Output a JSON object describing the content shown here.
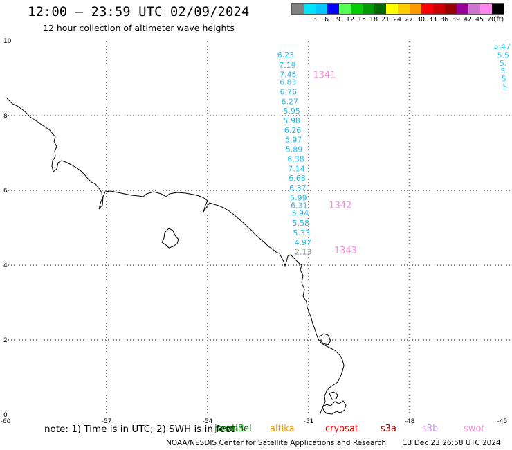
{
  "header": {
    "title": "12:00 – 23:59 UTC 02/09/2024",
    "subtitle": "12 hour collection of altimeter wave heights"
  },
  "legend": {
    "unit": "(ft)",
    "items": [
      {
        "label": "",
        "color": "#808080"
      },
      {
        "label": "3",
        "color": "#00e5ff"
      },
      {
        "label": "6",
        "color": "#00c8ff"
      },
      {
        "label": "9",
        "color": "#0000ff"
      },
      {
        "label": "12",
        "color": "#55ff55"
      },
      {
        "label": "15",
        "color": "#00cc00"
      },
      {
        "label": "18",
        "color": "#009900"
      },
      {
        "label": "21",
        "color": "#006600"
      },
      {
        "label": "24",
        "color": "#ffff00"
      },
      {
        "label": "27",
        "color": "#ffcc00"
      },
      {
        "label": "30",
        "color": "#ff9900"
      },
      {
        "label": "33",
        "color": "#ff0000"
      },
      {
        "label": "36",
        "color": "#cc0000"
      },
      {
        "label": "39",
        "color": "#990000"
      },
      {
        "label": "42",
        "color": "#990099"
      },
      {
        "label": "45",
        "color": "#cc77cc"
      },
      {
        "label": "70",
        "color": "#ff88ee"
      },
      {
        "label": "",
        "color": "#000000"
      }
    ]
  },
  "axes": {
    "x_ticks": [
      "-60",
      "-57",
      "-54",
      "-51",
      "-48",
      "-45"
    ],
    "y_ticks": [
      "0",
      "2",
      "4",
      "6",
      "8",
      "10"
    ]
  },
  "track": {
    "color": "#22bbee",
    "readings": [
      {
        "text": "6.23",
        "lat": 9.63,
        "lon": -51.68
      },
      {
        "text": "7.19",
        "lat": 9.35,
        "lon": -51.63
      },
      {
        "text": "7.45",
        "lat": 9.1,
        "lon": -51.61
      },
      {
        "text": "6.83",
        "lat": 8.9,
        "lon": -51.61
      },
      {
        "text": "6.76",
        "lat": 8.64,
        "lon": -51.6
      },
      {
        "text": "6.27",
        "lat": 8.38,
        "lon": -51.56
      },
      {
        "text": "5.95",
        "lat": 8.13,
        "lon": -51.5
      },
      {
        "text": "5.98",
        "lat": 7.87,
        "lon": -51.5
      },
      {
        "text": "6.26",
        "lat": 7.61,
        "lon": -51.47
      },
      {
        "text": "5.97",
        "lat": 7.36,
        "lon": -51.45
      },
      {
        "text": "5.89",
        "lat": 7.1,
        "lon": -51.43
      },
      {
        "text": "6.38",
        "lat": 6.84,
        "lon": -51.38
      },
      {
        "text": "7.14",
        "lat": 6.58,
        "lon": -51.36
      },
      {
        "text": "6.68",
        "lat": 6.33,
        "lon": -51.34
      },
      {
        "text": "6.37",
        "lat": 6.07,
        "lon": -51.32
      },
      {
        "text": "5.99",
        "lat": 5.81,
        "lon": -51.3
      },
      {
        "text": "6.31",
        "lat": 5.6,
        "lon": -51.28
      },
      {
        "text": "5.94",
        "lat": 5.4,
        "lon": -51.25
      },
      {
        "text": "5.58",
        "lat": 5.13,
        "lon": -51.23
      },
      {
        "text": "5.33",
        "lat": 4.87,
        "lon": -51.21
      },
      {
        "text": "4.97",
        "lat": 4.61,
        "lon": -51.17
      },
      {
        "text": "2.13",
        "lat": 4.36,
        "lon": -51.16,
        "color": "#888888"
      }
    ],
    "time_labels": [
      {
        "text": "1341",
        "lat": 9.08,
        "lon": -50.53
      },
      {
        "text": "1342",
        "lat": 5.6,
        "lon": -50.06
      },
      {
        "text": "1343",
        "lat": 4.39,
        "lon": -49.9
      }
    ],
    "time_color": "#ff88dd"
  },
  "edge_track": {
    "color": "#22ccee",
    "readings": [
      {
        "text": "5.47",
        "lat": 9.85,
        "lon": -45.5
      },
      {
        "text": "5.5",
        "lat": 9.62,
        "lon": -45.4
      },
      {
        "text": "5.",
        "lat": 9.41,
        "lon": -45.33
      },
      {
        "text": "5.",
        "lat": 9.2,
        "lon": -45.3
      },
      {
        "text": "5",
        "lat": 8.99,
        "lon": -45.27
      },
      {
        "text": "5",
        "lat": 8.78,
        "lon": -45.24
      }
    ]
  },
  "satellites": [
    {
      "name": "jason3",
      "color": "#00aa00"
    },
    {
      "name": "sentinel",
      "color": "#006600"
    },
    {
      "name": "altika",
      "color": "#ee9900"
    },
    {
      "name": "cryosat",
      "color": "#ee0000"
    },
    {
      "name": "s3a",
      "color": "#990000"
    },
    {
      "name": "s3b",
      "color": "#cc99ee"
    },
    {
      "name": "swot",
      "color": "#ff88dd"
    }
  ],
  "footer": {
    "note": "note: 1) Time is in UTC; 2) SWH is in feet",
    "credit": "NOAA/NESDIS Center for Satellite Applications and Research",
    "timestamp": "13 Dec 23:26:58 UTC 2024"
  }
}
